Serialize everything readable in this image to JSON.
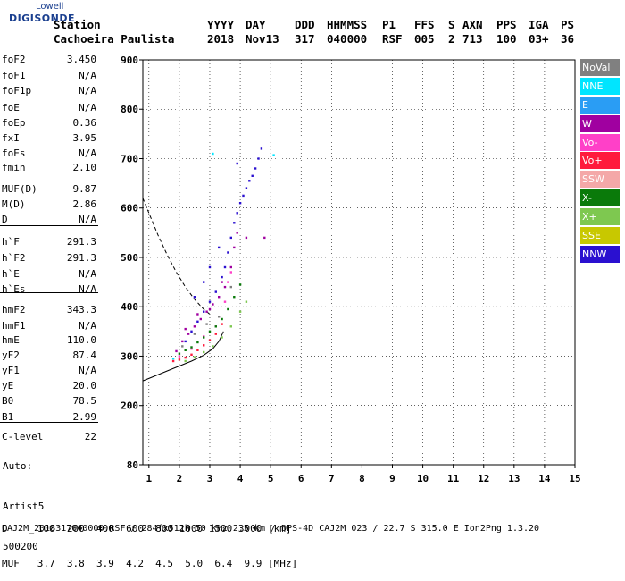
{
  "logo": {
    "line1": "Lowell",
    "line2": "DIGISONDE"
  },
  "header": {
    "row1": [
      "Station",
      "YYYY",
      "DAY",
      "DDD",
      "HHMMSS",
      "P1",
      "FFS",
      "S",
      "AXN",
      "PPS",
      "IGA",
      "PS"
    ],
    "row2": [
      "Cachoeira Paulista",
      "2018",
      "Nov13",
      "317",
      "040000",
      "RSF",
      "005",
      "2",
      "713",
      "100",
      "03+",
      "36"
    ]
  },
  "params": [
    {
      "k": "foF2",
      "v": "3.450"
    },
    {
      "k": "foF1",
      "v": "N/A"
    },
    {
      "k": "foF1p",
      "v": "N/A"
    },
    {
      "k": "foE",
      "v": "N/A"
    },
    {
      "k": "foEp",
      "v": "0.36"
    },
    {
      "k": "fxI",
      "v": "3.95"
    },
    {
      "k": "foEs",
      "v": "N/A"
    },
    {
      "k": "fmin",
      "v": "2.10"
    },
    {
      "k": "MUF(D)",
      "v": "9.87"
    },
    {
      "k": "M(D)",
      "v": "2.86"
    },
    {
      "k": "D",
      "v": "N/A"
    },
    {
      "k": "h`F",
      "v": "291.3"
    },
    {
      "k": "h`F2",
      "v": "291.3"
    },
    {
      "k": "h`E",
      "v": "N/A"
    },
    {
      "k": "h`Es",
      "v": "N/A"
    },
    {
      "k": "hmF2",
      "v": "343.3"
    },
    {
      "k": "hmF1",
      "v": "N/A"
    },
    {
      "k": "hmE",
      "v": "110.0"
    },
    {
      "k": "yF2",
      "v": "87.4"
    },
    {
      "k": "yF1",
      "v": "N/A"
    },
    {
      "k": "yE",
      "v": "20.0"
    },
    {
      "k": "B0",
      "v": "78.5"
    },
    {
      "k": "B1",
      "v": "2.99"
    },
    {
      "k": "C-level",
      "v": "22"
    }
  ],
  "auto": [
    "Auto:",
    "Artist5",
    "500200"
  ],
  "bottom": {
    "row1": "D     100  200  400  600  800 1000 1500 3000 [km]",
    "row2": "MUF   3.7  3.8  3.9  4.2  4.5  5.0  6.4  9.9 [MHz]"
  },
  "footer": "CAJ2M_2018317040000.RSF / 284fx512h 50 kHz 2.5 km / DPS-4D CAJ2M 023 / 22.7 S 315.0 E Ion2Png 1.3.20",
  "legend": [
    {
      "label": "NoVal",
      "color": "#808080"
    },
    {
      "label": "NNE",
      "color": "#00e5ff"
    },
    {
      "label": "E",
      "color": "#2a9df4"
    },
    {
      "label": "W",
      "color": "#a000a0"
    },
    {
      "label": "Vo-",
      "color": "#ff40c8"
    },
    {
      "label": "Vo+",
      "color": "#ff1a3c"
    },
    {
      "label": "SSW",
      "color": "#f4a8a8"
    },
    {
      "label": "X-",
      "color": "#0a7a0a"
    },
    {
      "label": "X+",
      "color": "#7ec850"
    },
    {
      "label": "SSE",
      "color": "#c8c800"
    },
    {
      "label": "NNW",
      "color": "#2a10d0"
    }
  ],
  "chart_data": {
    "type": "scatter",
    "xlim": [
      0.8,
      15
    ],
    "ylim": [
      80,
      900
    ],
    "x_ticks": [
      1,
      2,
      3,
      4,
      5,
      6,
      7,
      8,
      9,
      10,
      11,
      12,
      13,
      14,
      15
    ],
    "y_ticks": [
      80,
      200,
      300,
      400,
      500,
      600,
      700,
      800,
      900
    ],
    "series": [
      {
        "name": "NNW",
        "color": "#2a10d0",
        "points": [
          [
            2.2,
            330
          ],
          [
            2.4,
            350
          ],
          [
            2.6,
            370
          ],
          [
            2.8,
            390
          ],
          [
            3.0,
            410
          ],
          [
            3.2,
            430
          ],
          [
            3.4,
            460
          ],
          [
            3.5,
            480
          ],
          [
            3.6,
            510
          ],
          [
            3.7,
            540
          ],
          [
            3.8,
            570
          ],
          [
            3.9,
            590
          ],
          [
            4.0,
            610
          ],
          [
            4.1,
            625
          ],
          [
            4.2,
            640
          ],
          [
            4.3,
            655
          ],
          [
            4.4,
            665
          ],
          [
            4.5,
            680
          ],
          [
            4.6,
            700
          ],
          [
            4.7,
            720
          ],
          [
            2.5,
            420
          ],
          [
            2.8,
            450
          ],
          [
            3.0,
            480
          ],
          [
            3.3,
            520
          ],
          [
            3.9,
            690
          ]
        ]
      },
      {
        "name": "W",
        "color": "#a000a0",
        "points": [
          [
            1.9,
            310
          ],
          [
            2.1,
            330
          ],
          [
            2.3,
            345
          ],
          [
            2.5,
            360
          ],
          [
            2.7,
            375
          ],
          [
            2.9,
            390
          ],
          [
            3.1,
            405
          ],
          [
            3.3,
            420
          ],
          [
            3.5,
            440
          ],
          [
            3.7,
            480
          ],
          [
            3.8,
            520
          ],
          [
            3.9,
            550
          ],
          [
            2.2,
            355
          ],
          [
            2.6,
            385
          ],
          [
            3.0,
            395
          ],
          [
            3.4,
            450
          ],
          [
            4.2,
            540
          ],
          [
            4.8,
            540
          ]
        ]
      },
      {
        "name": "Vo-",
        "color": "#ff40c8",
        "points": [
          [
            2.0,
            300
          ],
          [
            2.4,
            315
          ],
          [
            2.8,
            340
          ],
          [
            3.2,
            360
          ],
          [
            3.5,
            410
          ],
          [
            3.6,
            450
          ],
          [
            3.7,
            470
          ]
        ]
      },
      {
        "name": "Vo+",
        "color": "#ff1a3c",
        "points": [
          [
            1.8,
            290
          ],
          [
            2.0,
            293
          ],
          [
            2.2,
            297
          ],
          [
            2.4,
            303
          ],
          [
            2.6,
            312
          ],
          [
            2.8,
            322
          ],
          [
            3.0,
            332
          ],
          [
            3.2,
            345
          ],
          [
            3.4,
            365
          ]
        ]
      },
      {
        "name": "X-",
        "color": "#0a7a0a",
        "points": [
          [
            2.0,
            305
          ],
          [
            2.2,
            312
          ],
          [
            2.4,
            318
          ],
          [
            2.6,
            328
          ],
          [
            2.8,
            338
          ],
          [
            3.0,
            350
          ],
          [
            3.2,
            360
          ],
          [
            3.4,
            375
          ],
          [
            3.6,
            395
          ],
          [
            3.8,
            420
          ],
          [
            4.0,
            445
          ]
        ]
      },
      {
        "name": "X+",
        "color": "#7ec850",
        "points": [
          [
            2.2,
            290
          ],
          [
            2.5,
            298
          ],
          [
            2.8,
            308
          ],
          [
            3.1,
            320
          ],
          [
            3.4,
            338
          ],
          [
            3.7,
            360
          ],
          [
            4.0,
            390
          ],
          [
            4.2,
            410
          ]
        ]
      },
      {
        "name": "NNE",
        "color": "#00e5ff",
        "points": [
          [
            3.1,
            710
          ],
          [
            5.1,
            707
          ],
          [
            1.8,
            295
          ]
        ]
      },
      {
        "name": "NoVal",
        "color": "#808080",
        "points": [
          [
            2.1,
            320
          ],
          [
            2.5,
            345
          ],
          [
            2.9,
            365
          ],
          [
            3.3,
            380
          ],
          [
            3.7,
            440
          ]
        ]
      }
    ],
    "dashed_curve": [
      [
        0.8,
        620
      ],
      [
        1.0,
        590
      ],
      [
        1.3,
        545
      ],
      [
        1.6,
        505
      ],
      [
        1.9,
        470
      ],
      [
        2.2,
        440
      ],
      [
        2.5,
        415
      ],
      [
        2.8,
        395
      ],
      [
        3.0,
        385
      ]
    ],
    "solid_curve": [
      [
        0.8,
        250
      ],
      [
        1.2,
        260
      ],
      [
        1.6,
        270
      ],
      [
        2.0,
        280
      ],
      [
        2.4,
        290
      ],
      [
        2.8,
        302
      ],
      [
        3.1,
        315
      ],
      [
        3.3,
        330
      ],
      [
        3.45,
        350
      ]
    ]
  }
}
